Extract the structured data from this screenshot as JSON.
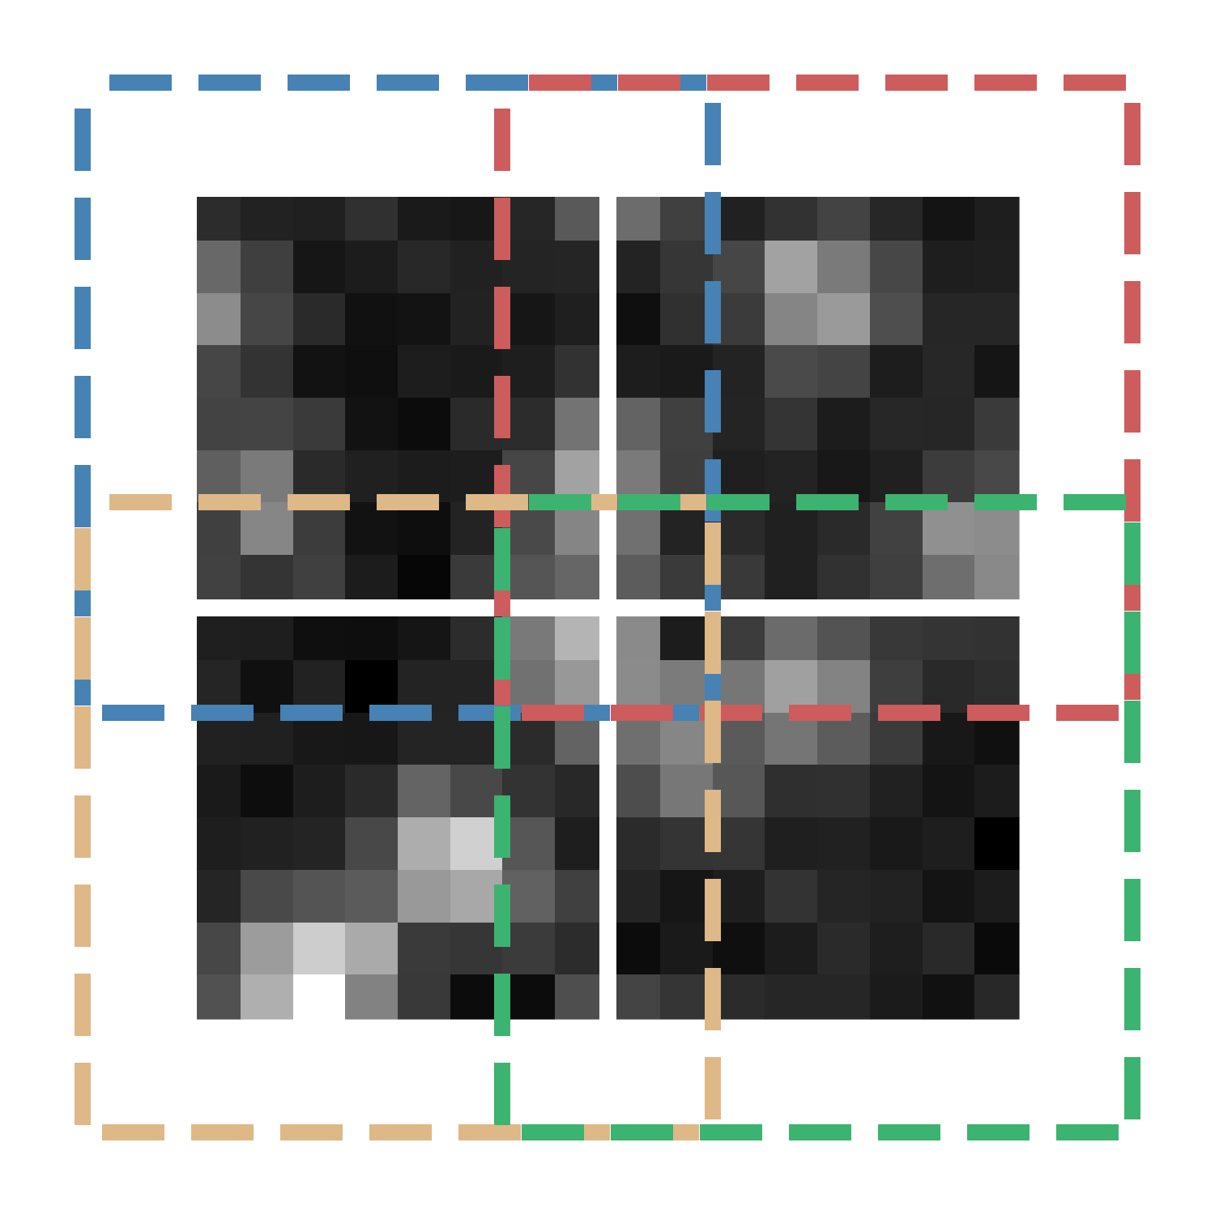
{
  "diagram": {
    "type": "pixel-grid-with-overlapping-windows",
    "grid_rows": 16,
    "grid_cols": 16,
    "quadrants": [
      {
        "name": "top-left"
      },
      {
        "name": "top-right"
      },
      {
        "name": "bottom-left"
      },
      {
        "name": "bottom-right"
      }
    ],
    "windows": [
      {
        "name": "blue",
        "color": "#4682B4"
      },
      {
        "name": "red",
        "color": "#CD5C5C"
      },
      {
        "name": "tan",
        "color": "#DEB887"
      },
      {
        "name": "green",
        "color": "#3CB371"
      }
    ],
    "pixel_gray_levels": [
      [
        44,
        34,
        32,
        48,
        26,
        23,
        38,
        89,
        108,
        64,
        33,
        50,
        67,
        39,
        20,
        30
      ],
      [
        104,
        63,
        22,
        28,
        40,
        33,
        36,
        37,
        35,
        54,
        70,
        162,
        122,
        71,
        30,
        31
      ],
      [
        140,
        70,
        42,
        17,
        19,
        34,
        22,
        31,
        15,
        48,
        59,
        133,
        154,
        78,
        38,
        38
      ],
      [
        70,
        51,
        18,
        15,
        29,
        26,
        30,
        50,
        29,
        26,
        35,
        74,
        68,
        29,
        39,
        21
      ],
      [
        67,
        68,
        58,
        18,
        12,
        42,
        44,
        115,
        99,
        64,
        36,
        52,
        28,
        39,
        38,
        58
      ],
      [
        95,
        122,
        42,
        32,
        28,
        29,
        70,
        162,
        122,
        62,
        31,
        35,
        24,
        32,
        60,
        72
      ],
      [
        64,
        134,
        60,
        18,
        14,
        35,
        73,
        133,
        112,
        35,
        42,
        32,
        42,
        65,
        144,
        140
      ],
      [
        65,
        52,
        64,
        28,
        6,
        58,
        85,
        102,
        92,
        58,
        57,
        32,
        49,
        63,
        110,
        137
      ],
      [
        31,
        30,
        15,
        14,
        21,
        44,
        121,
        180,
        138,
        28,
        60,
        107,
        83,
        56,
        52,
        50
      ],
      [
        37,
        16,
        34,
        0,
        35,
        35,
        113,
        152,
        139,
        123,
        118,
        160,
        131,
        62,
        41,
        46
      ],
      [
        33,
        32,
        24,
        23,
        36,
        36,
        43,
        99,
        111,
        134,
        90,
        117,
        92,
        59,
        24,
        16
      ],
      [
        26,
        13,
        29,
        42,
        100,
        72,
        51,
        40,
        77,
        119,
        87,
        47,
        48,
        33,
        20,
        28
      ],
      [
        30,
        33,
        36,
        72,
        173,
        208,
        86,
        30,
        43,
        52,
        53,
        31,
        33,
        25,
        30,
        0
      ],
      [
        37,
        73,
        84,
        91,
        153,
        168,
        97,
        64,
        36,
        22,
        30,
        51,
        37,
        34,
        20,
        28
      ],
      [
        71,
        156,
        205,
        170,
        58,
        54,
        59,
        44,
        12,
        26,
        15,
        28,
        42,
        30,
        41,
        10
      ],
      [
        81,
        175,
        255,
        130,
        57,
        12,
        12,
        78,
        68,
        53,
        43,
        38,
        38,
        27,
        17,
        40
      ]
    ]
  }
}
